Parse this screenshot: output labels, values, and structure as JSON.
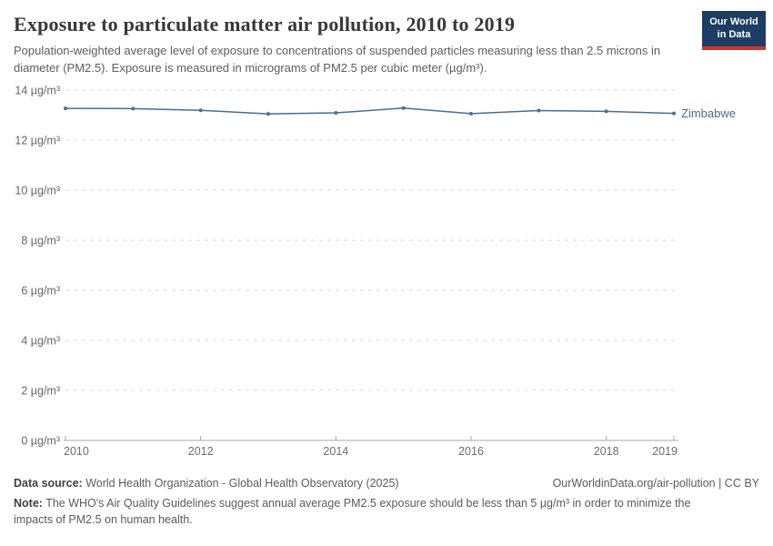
{
  "header": {
    "title": "Exposure to particulate matter air pollution, 2010 to 2019",
    "subtitle": "Population-weighted average level of exposure to concentrations of suspended particles measuring less than 2.5 microns in diameter (PM2.5). Exposure is measured in micrograms of PM2.5 per cubic meter (µg/m³).",
    "logo": {
      "line1": "Our World",
      "line2": "in Data",
      "bg_color": "#1d3d63",
      "accent_color": "#d0342c"
    }
  },
  "chart_data": {
    "type": "line",
    "title": "Exposure to particulate matter air pollution, 2010 to 2019",
    "x": [
      2010,
      2011,
      2012,
      2013,
      2014,
      2015,
      2016,
      2017,
      2018,
      2019
    ],
    "series": [
      {
        "name": "Zimbabwe",
        "color": "#4C6A9C",
        "values": [
          13.27,
          13.26,
          13.19,
          13.05,
          13.09,
          13.28,
          13.06,
          13.18,
          13.15,
          13.07
        ]
      }
    ],
    "unit": "µg/m³",
    "ylim": [
      0,
      14
    ],
    "yticks": [
      0,
      2,
      4,
      6,
      8,
      10,
      12,
      14
    ],
    "xticks": [
      2010,
      2012,
      2014,
      2016,
      2018,
      2019
    ],
    "xlim": [
      2010,
      2019
    ],
    "grid": "dashed-horizontal",
    "legend_position": "end-of-line-label",
    "grid_color": "#d9d9d9",
    "axis_color": "#a8a8a8"
  },
  "footer": {
    "datasource_label": "Data source:",
    "datasource_text": " World Health Organization - Global Health Observatory (2025)",
    "link_text": "OurWorldinData.org/air-pollution | CC BY",
    "note_label": "Note:",
    "note_text": " The WHO's Air Quality Guidelines suggest annual average PM2.5 exposure should be less than 5 µg/m³ in order to minimize the impacts of PM2.5 on human health."
  }
}
